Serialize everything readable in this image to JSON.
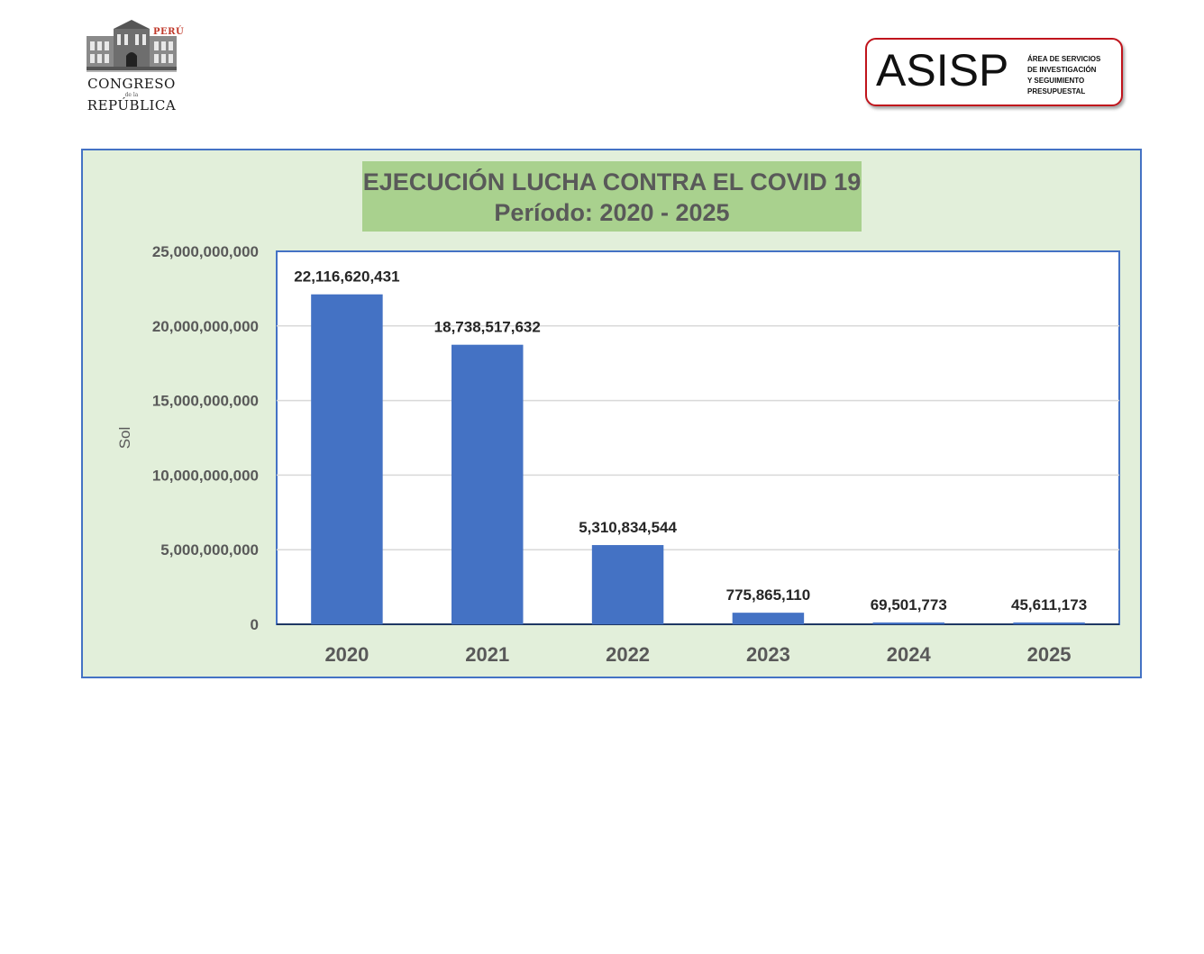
{
  "logos": {
    "congreso": {
      "peru": "PERÚ",
      "line1": "CONGRESO",
      "line2": "de la",
      "line3": "REPÚBLICA"
    },
    "asisp": {
      "acronym": "ASISP",
      "description": [
        "ÁREA DE SERVICIOS",
        "DE INVESTIGACIÓN",
        "Y SEGUIMIENTO",
        "PRESUPUESTAL"
      ],
      "border_color": "#c0141c"
    }
  },
  "chart_data": {
    "type": "bar",
    "title": "EJECUCIÓN LUCHA CONTRA EL COVID 19",
    "subtitle": "Período: 2020 - 2025",
    "xlabel": "",
    "ylabel": "Sol",
    "categories": [
      "2020",
      "2021",
      "2022",
      "2023",
      "2024",
      "2025"
    ],
    "values": [
      22116620431,
      18738517632,
      5310834544,
      775865110,
      69501773,
      45611173
    ],
    "data_labels": [
      "22,116,620,431",
      "18,738,517,632",
      "5,310,834,544",
      "775,865,110",
      "69,501,773",
      "45,611,173"
    ],
    "ylim": [
      0,
      25000000000
    ],
    "yticks": [
      0,
      5000000000,
      10000000000,
      15000000000,
      20000000000,
      25000000000
    ],
    "ytick_labels": [
      "0",
      "5,000,000,000",
      "10,000,000,000",
      "15,000,000,000",
      "20,000,000,000",
      "25,000,000,000"
    ],
    "grid": true,
    "legend": "none",
    "colors": {
      "bar": "#4472c4",
      "panel_background": "#e2efda",
      "title_background": "#a9d18e",
      "plot_border": "#4472c4"
    }
  }
}
